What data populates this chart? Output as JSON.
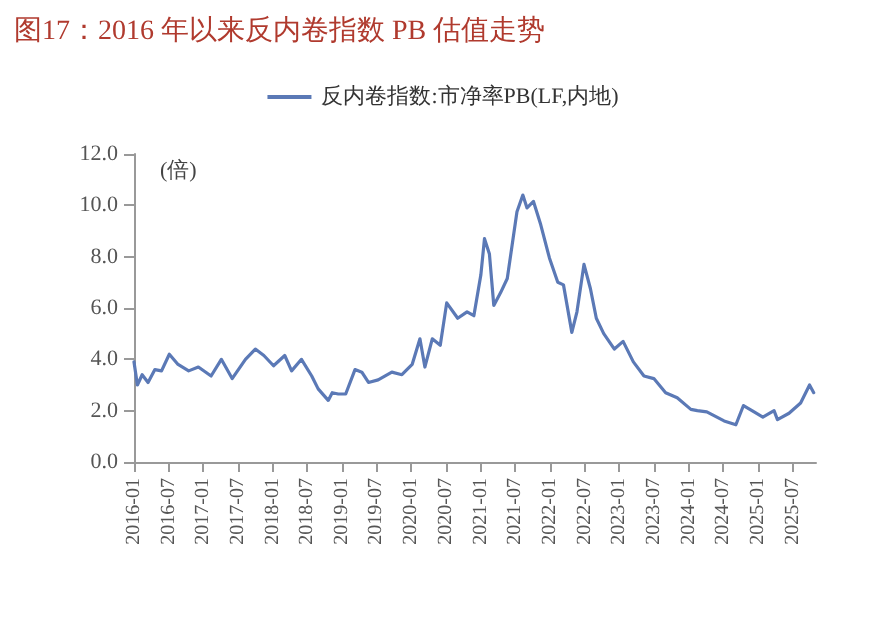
{
  "chart_data": {
    "type": "line",
    "title": "图17：2016 年以来反内卷指数 PB 估值走势",
    "ylabel": "(倍)",
    "x": [
      "2016-01-01",
      "2016-01-19",
      "2016-02-13",
      "2016-03-15",
      "2016-04-20",
      "2016-05-25",
      "2016-07-05",
      "2016-08-20",
      "2016-10-15",
      "2016-12-05",
      "2017-02-10",
      "2017-04-05",
      "2017-06-01",
      "2017-08-10",
      "2017-10-01",
      "2017-11-15",
      "2018-01-05",
      "2018-03-05",
      "2018-04-10",
      "2018-06-01",
      "2018-07-25",
      "2018-08-28",
      "2018-10-20",
      "2018-11-10",
      "2018-12-12",
      "2019-01-20",
      "2019-03-10",
      "2019-04-15",
      "2019-05-20",
      "2019-07-10",
      "2019-09-20",
      "2019-11-12",
      "2020-01-05",
      "2020-02-15",
      "2020-03-12",
      "2020-04-20",
      "2020-06-01",
      "2020-07-05",
      "2020-09-01",
      "2020-10-20",
      "2020-11-25",
      "2021-01-01",
      "2021-01-20",
      "2021-02-15",
      "2021-03-10",
      "2021-04-15",
      "2021-05-20",
      "2021-07-10",
      "2021-08-10",
      "2021-09-01",
      "2021-10-05",
      "2021-11-12",
      "2021-12-28",
      "2022-02-10",
      "2022-03-12",
      "2022-04-25",
      "2022-05-22",
      "2022-06-28",
      "2022-08-01",
      "2022-09-01",
      "2022-10-10",
      "2022-12-05",
      "2023-01-20",
      "2023-03-15",
      "2023-05-10",
      "2023-07-01",
      "2023-09-01",
      "2023-11-01",
      "2024-01-12",
      "2024-02-15",
      "2024-04-05",
      "2024-07-05",
      "2024-09-05",
      "2024-10-15",
      "2024-12-10",
      "2025-01-25",
      "2025-03-25",
      "2025-04-12",
      "2025-06-12",
      "2025-08-12",
      "2025-09-28",
      "2025-10-20"
    ],
    "series": [
      {
        "name": "反内卷指数:市净率PB(LF,内地)",
        "color": "#5b79b6",
        "values": [
          3.9,
          3.0,
          3.4,
          3.1,
          3.6,
          3.55,
          4.2,
          3.8,
          3.55,
          3.7,
          3.35,
          4.0,
          3.25,
          4.0,
          4.4,
          4.15,
          3.75,
          4.15,
          3.55,
          4.0,
          3.35,
          2.85,
          2.4,
          2.7,
          2.65,
          2.65,
          3.6,
          3.5,
          3.1,
          3.2,
          3.5,
          3.4,
          3.8,
          4.8,
          3.7,
          4.8,
          4.55,
          6.2,
          5.6,
          5.85,
          5.7,
          7.3,
          8.7,
          8.1,
          6.1,
          6.6,
          7.15,
          9.75,
          10.4,
          9.9,
          10.15,
          9.25,
          7.95,
          7.0,
          6.9,
          5.05,
          5.85,
          7.7,
          6.75,
          5.6,
          5.0,
          4.4,
          4.7,
          3.9,
          3.35,
          3.25,
          2.7,
          2.5,
          2.05,
          2.0,
          1.95,
          1.6,
          1.45,
          2.2,
          1.95,
          1.75,
          2.0,
          1.65,
          1.9,
          2.3,
          3.0,
          2.7
        ]
      }
    ],
    "xlim": [
      "2016-01",
      "2025-11"
    ],
    "xticks": [
      "2016-01",
      "2016-07",
      "2017-01",
      "2017-07",
      "2018-01",
      "2018-07",
      "2019-01",
      "2019-07",
      "2020-01",
      "2020-07",
      "2021-01",
      "2021-07",
      "2022-01",
      "2022-07",
      "2023-01",
      "2023-07",
      "2024-01",
      "2024-07",
      "2025-01",
      "2025-07"
    ],
    "ylim": [
      0,
      12
    ],
    "yticks": [
      {
        "value": 0,
        "label": "0.0"
      },
      {
        "value": 2,
        "label": "2.0"
      },
      {
        "value": 4,
        "label": "4.0"
      },
      {
        "value": 6,
        "label": "6.0"
      },
      {
        "value": 8,
        "label": "8.0"
      },
      {
        "value": 10,
        "label": "10.0"
      },
      {
        "value": 12,
        "label": "12.0"
      }
    ],
    "grid": false,
    "legend": "top",
    "marker": "none",
    "line_style": "solid"
  }
}
